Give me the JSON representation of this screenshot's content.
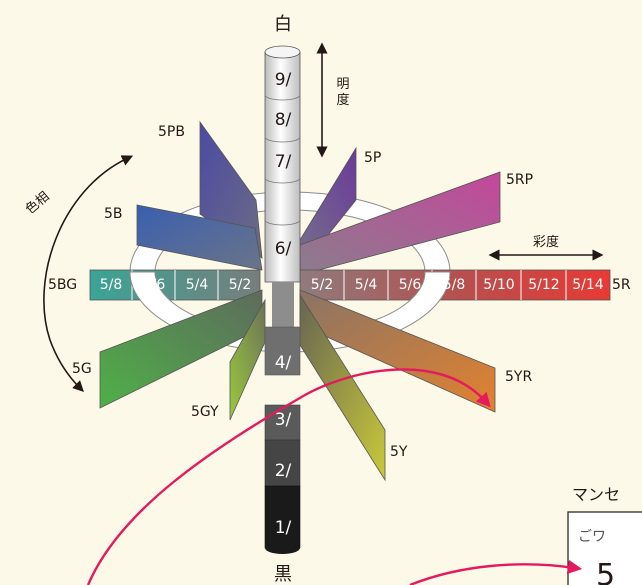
{
  "top_label": "白",
  "bottom_label": "黒",
  "value_axis": {
    "label_line1": "明",
    "label_line2": "度"
  },
  "hue_axis_label": "色相",
  "chroma_axis_label": "彩度",
  "value_steps": [
    "9/",
    "8/",
    "7/",
    "6/",
    "4/",
    "3/",
    "2/",
    "1/"
  ],
  "left_chroma": [
    "5/8",
    "5/6",
    "5/4",
    "5/2"
  ],
  "right_chroma": [
    "5/2",
    "5/4",
    "5/6",
    "5/8",
    "5/10",
    "5/12",
    "5/14"
  ],
  "hues": {
    "r": "5R",
    "yr": "5YR",
    "y": "5Y",
    "gy": "5GY",
    "g": "5G",
    "bg": "5BG",
    "b": "5B",
    "pb": "5PB",
    "p": "5P",
    "rp": "5RP"
  },
  "sidebar": {
    "title": "マンセ",
    "box_text": "ごワ",
    "big_digit": "5"
  },
  "colors": {
    "background": "#fdf9e8",
    "arrow": "#e5195e",
    "red_end": "#e83a35",
    "bg_end": "#3aa496"
  }
}
